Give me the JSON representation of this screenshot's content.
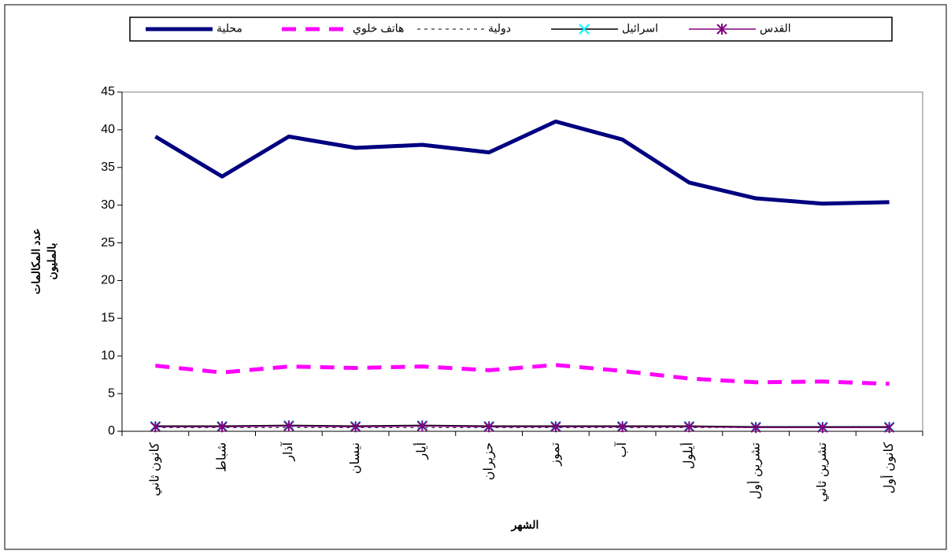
{
  "chart_data": {
    "type": "line",
    "ylabel": [
      "عدد المكالمات",
      "بالمليون"
    ],
    "xlabel": "الشهر",
    "categories": [
      "كانون ثاني",
      "شباط",
      "آذار",
      "نيسان",
      "أيار",
      "حزيران",
      "تموز",
      "آب",
      "أيلول",
      "تشرين أول",
      "تشرين ثاني",
      "كانون أول"
    ],
    "series": [
      {
        "name": "محلية",
        "color": "#000080",
        "width": 5,
        "dash": "none",
        "marker": "none",
        "values": [
          39.1,
          33.8,
          39.1,
          37.6,
          38.0,
          37.0,
          41.1,
          38.7,
          33.0,
          30.9,
          30.2,
          30.4
        ]
      },
      {
        "name": "هاتف خلوي",
        "color": "#ff00ff",
        "width": 5,
        "dash": "dash",
        "marker": "none",
        "values": [
          8.7,
          7.8,
          8.6,
          8.4,
          8.6,
          8.1,
          8.8,
          8.0,
          7.0,
          6.5,
          6.6,
          6.3
        ]
      },
      {
        "name": "دولية",
        "color": "#000000",
        "width": 1,
        "dash": "dot",
        "marker": "none",
        "values": [
          0.5,
          0.5,
          0.5,
          0.5,
          0.5,
          0.5,
          0.5,
          0.5,
          0.5,
          0.5,
          0.5,
          0.5
        ]
      },
      {
        "name": "اسرائيل",
        "color": "#000000",
        "width": 1.5,
        "dash": "none",
        "marker": "x",
        "marker_color": "#00ffff",
        "values": [
          0.7,
          0.7,
          0.8,
          0.7,
          0.8,
          0.7,
          0.7,
          0.7,
          0.7,
          0.6,
          0.6,
          0.6
        ]
      },
      {
        "name": "القدس",
        "color": "#800080",
        "width": 1.5,
        "dash": "none",
        "marker": "star",
        "marker_color": "#800080",
        "values": [
          0.6,
          0.6,
          0.7,
          0.6,
          0.7,
          0.6,
          0.6,
          0.6,
          0.6,
          0.5,
          0.5,
          0.5
        ]
      }
    ],
    "ylim": [
      0,
      45
    ],
    "yticks": [
      0,
      5,
      10,
      15,
      20,
      25,
      30,
      35,
      40,
      45
    ],
    "grid": false,
    "legend": "top"
  }
}
